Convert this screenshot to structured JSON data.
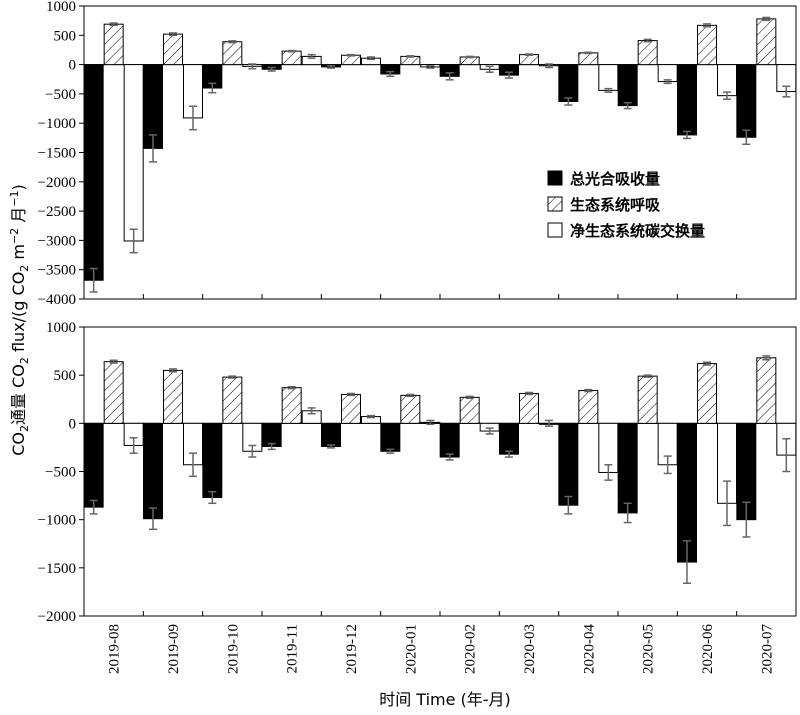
{
  "chart_data": {
    "type": "bar",
    "categories": [
      "2019-08",
      "2019-09",
      "2019-10",
      "2019-11",
      "2019-12",
      "2020-01",
      "2020-02",
      "2020-03",
      "2020-04",
      "2020-05",
      "2020-06",
      "2020-07"
    ],
    "xlabel": "时间 Time (年-月)",
    "ylabel": "CO2通量 CO2 flux/(g CO2 m−2 月−1)",
    "legend": {
      "placement": "center-right of top panel",
      "entries": [
        "总光合吸收量",
        "生态系统呼吸",
        "净生态系统碳交换量"
      ]
    },
    "colors": {
      "gpp": "#000000",
      "er": "#ffffff",
      "nee": "#ffffff",
      "error_bar": "#666666"
    },
    "panels": [
      {
        "ylim": [
          -4000,
          1000
        ],
        "yticks": [
          1000,
          500,
          0,
          -500,
          -1000,
          -1500,
          -2000,
          -2500,
          -3000,
          -3500,
          -4000
        ],
        "series": [
          {
            "name": "总光合吸收量",
            "pattern": "solid-black",
            "values": [
              -3680,
              -1430,
              -400,
              -80,
              -40,
              -160,
              -200,
              -180,
              -630,
              -700,
              -1200,
              -1240
            ],
            "errors": [
              200,
              230,
              80,
              30,
              20,
              40,
              60,
              50,
              60,
              50,
              60,
              120
            ]
          },
          {
            "name": "生态系统呼吸",
            "pattern": "hatched",
            "values": [
              690,
              520,
              390,
              230,
              160,
              140,
              130,
              170,
              200,
              410,
              670,
              780
            ],
            "errors": [
              20,
              20,
              15,
              10,
              10,
              10,
              10,
              10,
              10,
              20,
              25,
              25
            ]
          },
          {
            "name": "净生态系统碳交换量",
            "pattern": "white",
            "values": [
              -3010,
              -910,
              -30,
              140,
              110,
              -40,
              -80,
              -20,
              -440,
              -290,
              -530,
              -460
            ],
            "errors": [
              200,
              200,
              40,
              30,
              20,
              20,
              50,
              30,
              30,
              30,
              60,
              90
            ]
          }
        ]
      },
      {
        "ylim": [
          -2000,
          1000
        ],
        "yticks": [
          1000,
          500,
          0,
          -500,
          -1000,
          -1500,
          -2000
        ],
        "series": [
          {
            "name": "总光合吸收量",
            "pattern": "solid-black",
            "values": [
              -870,
              -990,
              -770,
              -240,
              -240,
              -290,
              -350,
              -320,
              -850,
              -930,
              -1440,
              -1000
            ],
            "errors": [
              70,
              110,
              60,
              30,
              15,
              20,
              30,
              30,
              90,
              100,
              220,
              180
            ]
          },
          {
            "name": "生态系统呼吸",
            "pattern": "hatched",
            "values": [
              640,
              550,
              480,
              370,
              300,
              290,
              270,
              310,
              340,
              490,
              620,
              680
            ],
            "errors": [
              15,
              15,
              10,
              10,
              10,
              10,
              10,
              10,
              10,
              10,
              15,
              20
            ]
          },
          {
            "name": "净生态系统碳交换量",
            "pattern": "white",
            "values": [
              -230,
              -430,
              -290,
              130,
              70,
              10,
              -80,
              0,
              -510,
              -430,
              -830,
              -330
            ],
            "errors": [
              80,
              120,
              60,
              30,
              10,
              20,
              30,
              30,
              80,
              90,
              230,
              170
            ]
          }
        ]
      }
    ]
  }
}
